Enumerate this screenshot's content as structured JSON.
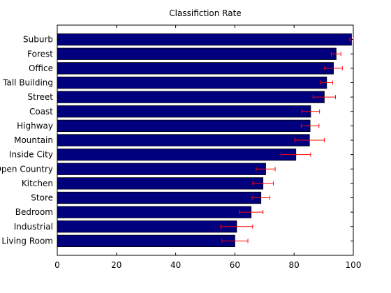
{
  "chart_data": {
    "type": "bar",
    "orientation": "horizontal",
    "title": "Classifiction Rate",
    "xlabel": "",
    "ylabel": "",
    "xlim": [
      0,
      100
    ],
    "x_ticks": [
      0,
      20,
      40,
      60,
      80,
      100
    ],
    "grid": false,
    "legend": "none",
    "bar_color": "#00007f",
    "error_color": "#ff0000",
    "categories": [
      "Suburb",
      "Forest",
      "Office",
      "Tall Building",
      "Street",
      "Coast",
      "Highway",
      "Mountain",
      "Inside City",
      "Open Country",
      "Kitchen",
      "Store",
      "Bedroom",
      "Industrial",
      "Living Room"
    ],
    "values": [
      99.4,
      94.2,
      93.3,
      91.0,
      90.2,
      85.6,
      85.4,
      85.2,
      80.6,
      70.4,
      69.5,
      68.8,
      65.5,
      60.6,
      60.0
    ],
    "errors": [
      0.6,
      1.6,
      3.0,
      2.0,
      3.8,
      3.0,
      3.0,
      5.0,
      5.0,
      3.2,
      3.5,
      3.0,
      4.0,
      5.4,
      4.4
    ]
  }
}
